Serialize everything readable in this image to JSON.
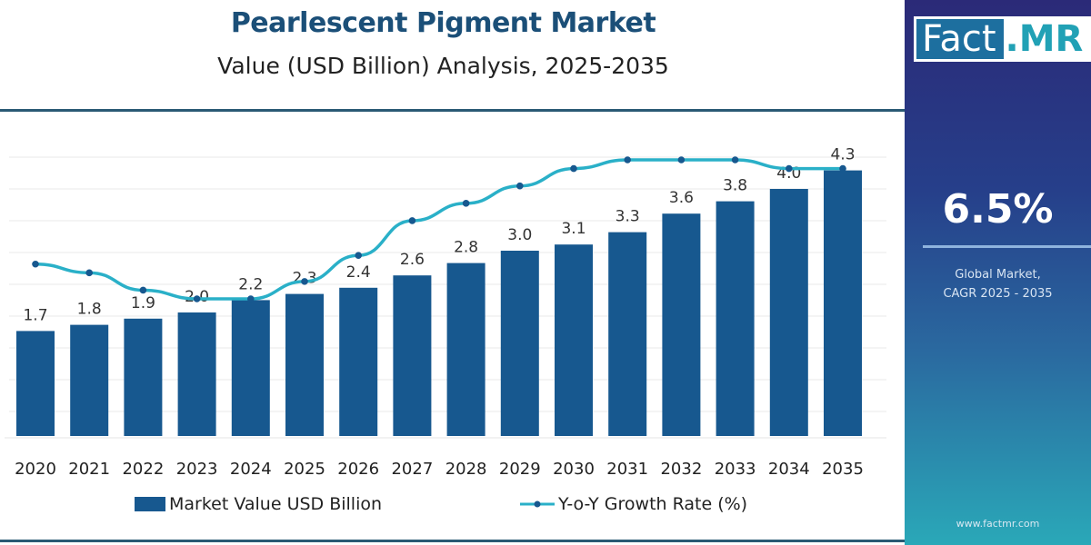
{
  "header": {
    "title": "Pearlescent Pigment Market",
    "subtitle": "Value (USD Billion) Analysis, 2025-2035"
  },
  "chart_data": {
    "type": "bar+line",
    "categories": [
      "2020",
      "2021",
      "2022",
      "2023",
      "2024",
      "2025",
      "2026",
      "2027",
      "2028",
      "2029",
      "2030",
      "2031",
      "2032",
      "2033",
      "2034",
      "2035"
    ],
    "series": [
      {
        "name": "Market Value USD Billion",
        "type": "bar",
        "color": "#17588f",
        "values": [
          1.7,
          1.8,
          1.9,
          2.0,
          2.2,
          2.3,
          2.4,
          2.6,
          2.8,
          3.0,
          3.1,
          3.3,
          3.6,
          3.8,
          4.0,
          4.3
        ],
        "labels": [
          "1.7",
          "1.8",
          "1.9",
          "2.0",
          "2.2",
          "2.3",
          "2.4",
          "2.6",
          "2.8",
          "3.0",
          "3.1",
          "3.3",
          "3.6",
          "3.8",
          "4.0",
          "4.3"
        ]
      },
      {
        "name": "Y-o-Y Growth Rate (%)",
        "type": "line",
        "color": "#2ab0c8",
        "marker_color": "#17588f",
        "values": [
          6.0,
          5.9,
          5.7,
          5.6,
          5.6,
          5.8,
          6.1,
          6.5,
          6.7,
          6.9,
          7.1,
          7.2,
          7.2,
          7.2,
          7.1,
          7.1
        ]
      }
    ],
    "ylim": [
      0,
      4.5
    ],
    "grid": true,
    "legend_position": "bottom"
  },
  "legend": {
    "bar_label": "Market Value USD Billion",
    "line_label": "Y-o-Y Growth Rate (%)"
  },
  "side_panel": {
    "logo": "Fact.MR",
    "logo_left": "Fact",
    "logo_right": ".MR",
    "cagr_value": "6.5%",
    "cagr_label_line1": "Global Market,",
    "cagr_label_line2": "CAGR 2025 - 2035",
    "url": "www.factmr.com"
  }
}
